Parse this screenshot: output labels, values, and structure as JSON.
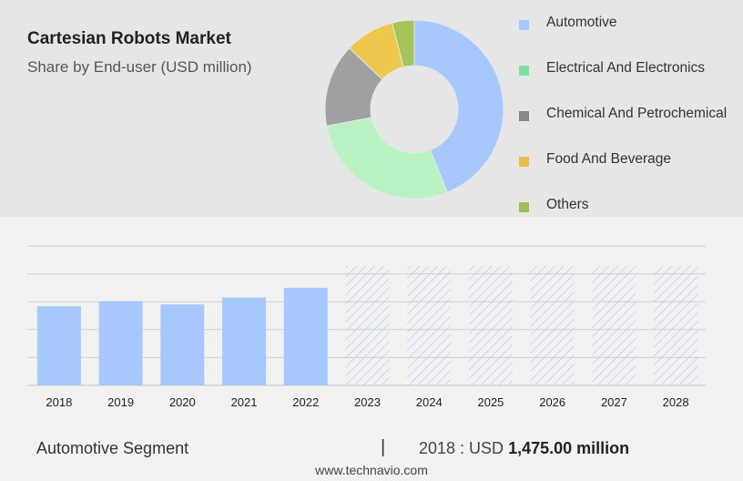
{
  "header": {
    "title": "Cartesian Robots Market",
    "subtitle": "Share by End-user (USD million)"
  },
  "colors": {
    "automotive": "#a6c8ff",
    "electrical": "#b8f2c2",
    "chemical": "#a0a0a0",
    "food": "#eec84c",
    "others": "#a3c45a",
    "bar": "#a6c8ff",
    "forecast_hatch": "#b7c9ea"
  },
  "legend": {
    "items": [
      {
        "label": "Automotive",
        "color": "#a6c8ff"
      },
      {
        "label": "Electrical And Electronics",
        "color": "#7be0a0"
      },
      {
        "label": "Chemical And Petrochemical",
        "color": "#888888"
      },
      {
        "label": "Food And Beverage",
        "color": "#e6c04a"
      },
      {
        "label": "Others",
        "color": "#9dbf5a"
      }
    ]
  },
  "chart_data": [
    {
      "type": "pie",
      "title": "Share by End-user (USD million)",
      "donut": true,
      "categories": [
        "Automotive",
        "Electrical And Electronics",
        "Chemical And Petrochemical",
        "Food And Beverage",
        "Others"
      ],
      "values": [
        44,
        28,
        15,
        9,
        4
      ]
    },
    {
      "type": "bar",
      "categories": [
        "2018",
        "2019",
        "2020",
        "2021",
        "2022",
        "2023",
        "2024",
        "2025",
        "2026",
        "2027",
        "2028"
      ],
      "series": [
        {
          "values": [
            1475,
            1570,
            1510,
            1640,
            1820,
            null,
            null,
            null,
            null,
            null,
            null
          ]
        }
      ],
      "forecast_categories": [
        "2023",
        "2024",
        "2025",
        "2026",
        "2027",
        "2028"
      ],
      "ylim": [
        0,
        2600
      ],
      "grid": true
    }
  ],
  "footer": {
    "segment": "Automotive Segment",
    "separator": "|",
    "year_label": "2018 : USD",
    "value": "1,475.00 million",
    "site": "www.technavio.com"
  }
}
